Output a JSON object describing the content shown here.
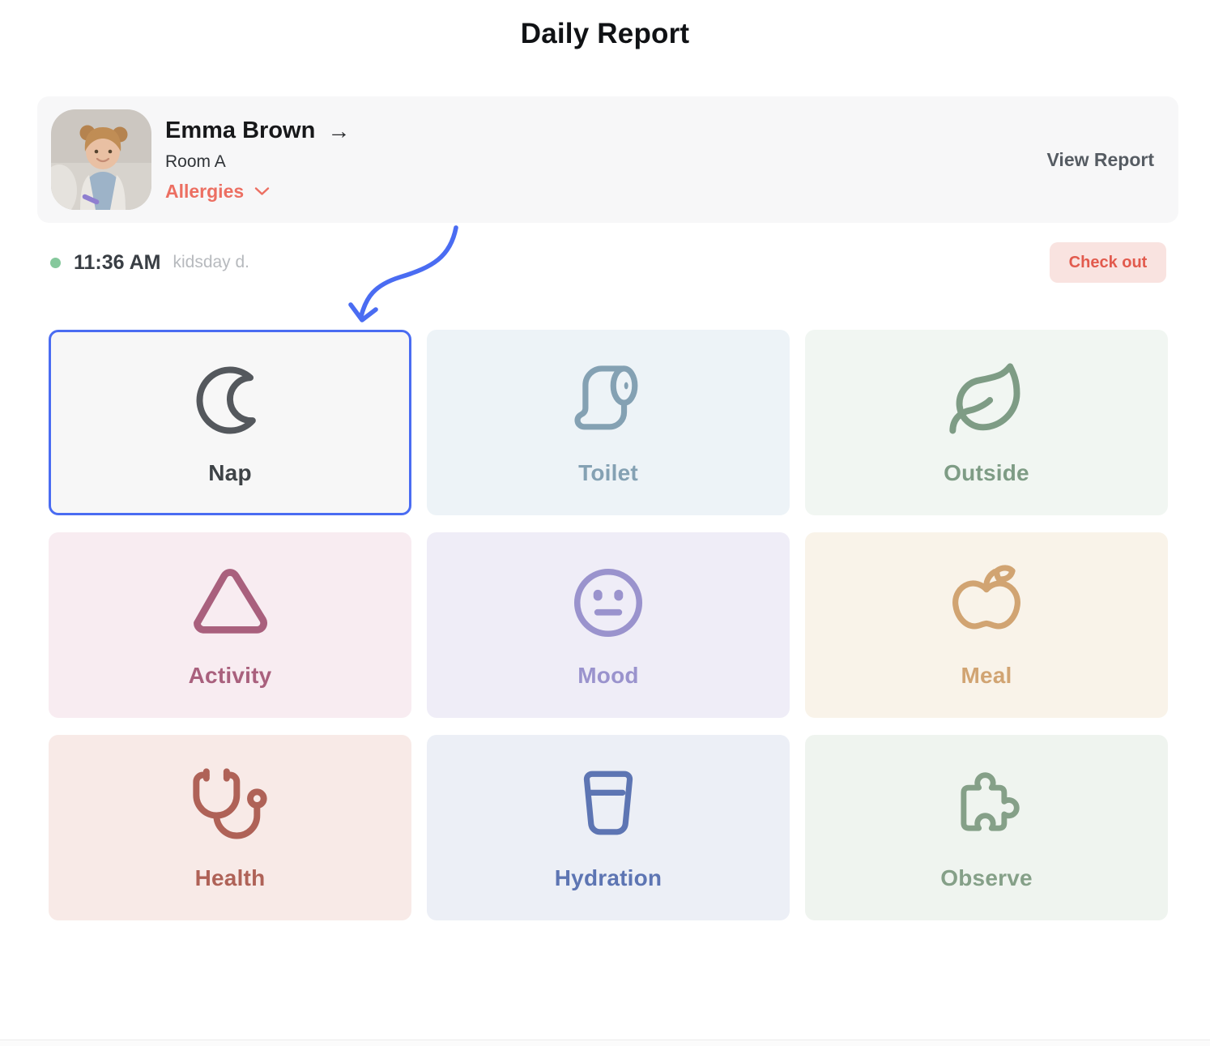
{
  "page": {
    "title": "Daily Report"
  },
  "child_card": {
    "name": "Emma Brown",
    "name_arrow": "→",
    "room": "Room A",
    "allergies_label": "Allergies",
    "view_report_label": "View Report"
  },
  "status_row": {
    "time": "11:36 AM",
    "source": "kidsday d.",
    "checkout_label": "Check out"
  },
  "annotation_arrow": {
    "target_tile": "Nap"
  },
  "tiles": [
    {
      "id": "nap",
      "label": "Nap",
      "icon": "moon-icon",
      "bg": "#f7f7f7",
      "icon_color": "#54585d",
      "label_color": "#3e4347",
      "selected": true
    },
    {
      "id": "toilet",
      "label": "Toilet",
      "icon": "toilet-paper-icon",
      "bg": "#edf3f7",
      "icon_color": "#84a1b3",
      "label_color": "#84a1b3",
      "selected": false
    },
    {
      "id": "outside",
      "label": "Outside",
      "icon": "leaf-icon",
      "bg": "#f1f6f2",
      "icon_color": "#7e9c85",
      "label_color": "#7e9c85",
      "selected": false
    },
    {
      "id": "activity",
      "label": "Activity",
      "icon": "triangle-icon",
      "bg": "#f8ecf1",
      "icon_color": "#a9607d",
      "label_color": "#a9607d",
      "selected": false
    },
    {
      "id": "mood",
      "label": "Mood",
      "icon": "neutral-face-icon",
      "bg": "#efedf7",
      "icon_color": "#9a93cd",
      "label_color": "#9a93cd",
      "selected": false
    },
    {
      "id": "meal",
      "label": "Meal",
      "icon": "apple-icon",
      "bg": "#f9f3e9",
      "icon_color": "#d1a472",
      "label_color": "#d1a472",
      "selected": false
    },
    {
      "id": "health",
      "label": "Health",
      "icon": "stethoscope-icon",
      "bg": "#f8eae7",
      "icon_color": "#af6257",
      "label_color": "#af6257",
      "selected": false
    },
    {
      "id": "hydration",
      "label": "Hydration",
      "icon": "glass-icon",
      "bg": "#eceff6",
      "icon_color": "#5d75b3",
      "label_color": "#5d75b3",
      "selected": false
    },
    {
      "id": "observe",
      "label": "Observe",
      "icon": "puzzle-icon",
      "bg": "#eff4ef",
      "icon_color": "#85a088",
      "label_color": "#85a088",
      "selected": false
    }
  ],
  "colors": {
    "accent_blue": "#4a6cf2",
    "allergy_red": "#ec6f62",
    "checkout_bg": "#f9e3e0",
    "checkout_text": "#e25a4d",
    "dot_green": "#85c89c",
    "card_bg": "#f7f7f8",
    "view_report_text": "#565c63",
    "time_text": "#393e44",
    "source_text": "#b7babe",
    "title_text": "#101215"
  }
}
